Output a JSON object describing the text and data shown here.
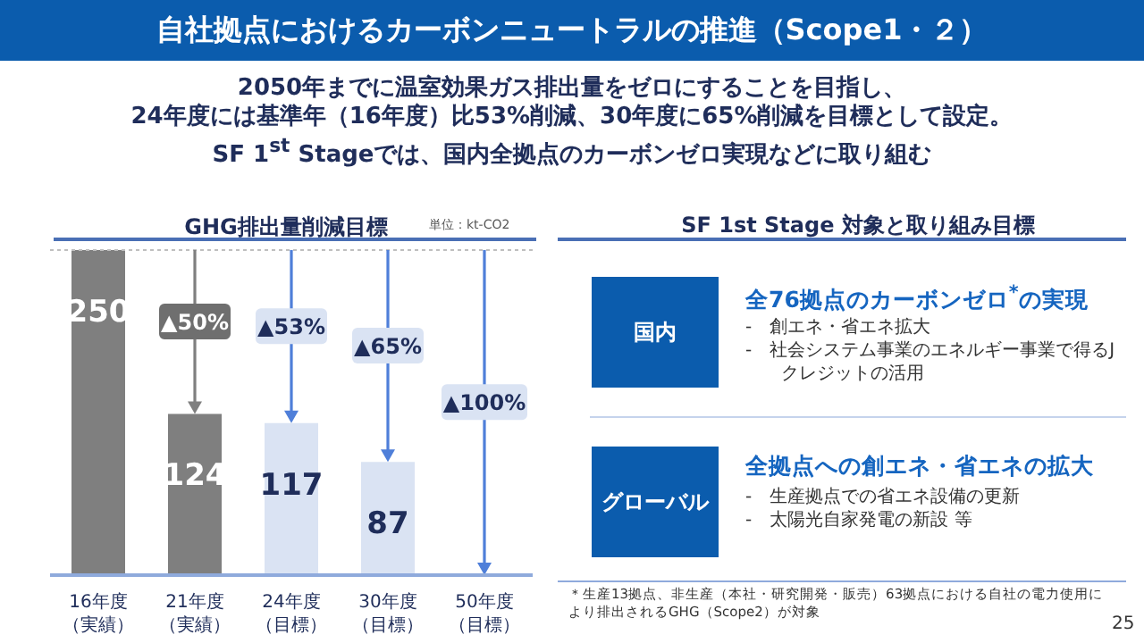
{
  "chart_data": [
    {
      "type": "bar",
      "title": "GHG排出量削減目標",
      "categories": [
        "16年度（実績）",
        "21年度（実績）",
        "24年度（目標）",
        "30年度（目標）",
        "50年度（目標）"
      ],
      "values": [
        250,
        124,
        117,
        87,
        0
      ],
      "colors": [
        "#7f7f7f",
        "#7f7f7f",
        "#dae3f3",
        "#dae3f3",
        "#dae3f3"
      ],
      "value_labels": [
        "250",
        "124",
        "117",
        "87",
        null
      ],
      "ref_lines": [
        {
          "axis": "y",
          "value": 250,
          "line_style": "dotted",
          "color": "#bfbfbf"
        }
      ],
      "annotations": [
        "自社拠点におけるカーボンニュートラルの推進（Scope1・２）",
        "2050年までに温室効果ガス排出量をゼロにすることを目指し、",
        "24年度には基準年（16年度）比53%削減、30年度に65%削減を目標として設定。",
        "SF 1$^{st}$ Stageでは、国内全拠点のカーボンゼロ実現などに取り組む",
        "単位：kt-CO2",
        "▲50%",
        "▲53%",
        "▲65%",
        "▲100%"
      ]
    },
    {
      "type": "other",
      "title": "SF 1st Stage 対象と取り組み目標",
      "annotations": [
        "国内",
        "全76拠点のカーボンゼロ$^{*}$の実現",
        "-　創エネ・省エネ拡大",
        "-　社会システム事業のエネルギー事業で得るJクレジットの活用",
        "グローバル",
        "全拠点への創エネ・省エネの拡大",
        "-　生産拠点での省エネ設備の更新",
        "-　太陽光自家発電の新設 等",
        "＊生産13拠点、非生産（本社・研究開発・販売）63拠点における自社の電力使用により排出されるGHG（Scope2）が対象",
        "25"
      ]
    }
  ]
}
